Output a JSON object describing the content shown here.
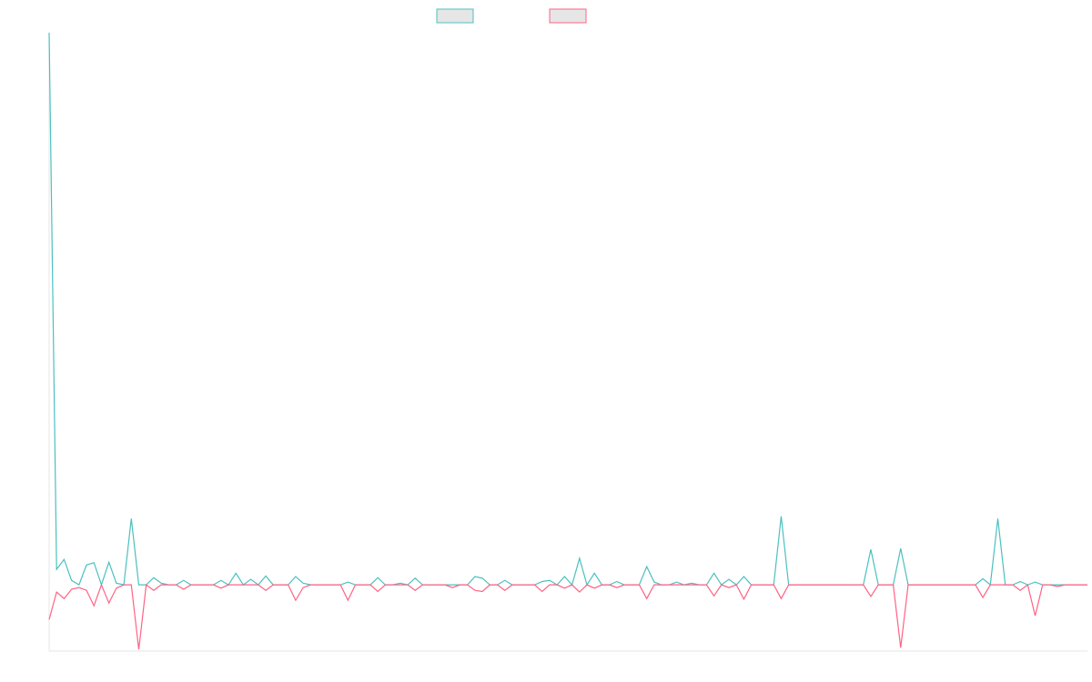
{
  "chart_data": {
    "type": "line",
    "ylim": [
      -12,
      100
    ],
    "series": [
      {
        "color": "#4bc0c0",
        "values": [
          100,
          2.8,
          4.6,
          0.8,
          0,
          3.6,
          4,
          0,
          4.1,
          0.3,
          0,
          12,
          0,
          0,
          1.3,
          0.3,
          0,
          0,
          0.8,
          0,
          0,
          0,
          0,
          0.8,
          0,
          2.1,
          0,
          1,
          0,
          1.6,
          0,
          0,
          0,
          1.5,
          0.3,
          0,
          0,
          0,
          0,
          0,
          0.5,
          0,
          0,
          0,
          1.3,
          0,
          0,
          0.3,
          0,
          1.2,
          0,
          0,
          0,
          0,
          0,
          0,
          0,
          1.5,
          1.2,
          0,
          0,
          0.8,
          0,
          0,
          0,
          0,
          0.6,
          0.8,
          0,
          1.5,
          0,
          4.8,
          0,
          2.1,
          0,
          0,
          0.6,
          0,
          0,
          0,
          3.3,
          0.5,
          0,
          0,
          0.5,
          0,
          0.3,
          0,
          0,
          2.1,
          0,
          1,
          0,
          1.5,
          0,
          0,
          0,
          0,
          12.4,
          0,
          0,
          0,
          0,
          0,
          0,
          0,
          0,
          0,
          0,
          0,
          6.4,
          0,
          0,
          0,
          6.6,
          0,
          0,
          0,
          0,
          0,
          0,
          0,
          0,
          0,
          0,
          1.1,
          0,
          12,
          0,
          0,
          0.6,
          0,
          0.5,
          0,
          0,
          0,
          0,
          0,
          0,
          0
        ]
      },
      {
        "color": "#ff6384",
        "values": [
          -6.3,
          -1.3,
          -2.5,
          -0.8,
          -0.5,
          -1,
          -3.8,
          0,
          -3.3,
          -0.6,
          0,
          0,
          -11.7,
          0,
          -1,
          0,
          0,
          0,
          -0.8,
          0,
          0,
          0,
          0,
          -0.6,
          0,
          0,
          0,
          0,
          0,
          -1,
          0,
          0,
          0,
          -2.8,
          -0.5,
          0,
          0,
          0,
          0,
          0,
          -2.8,
          0,
          0,
          0,
          -1.2,
          0,
          0,
          0,
          0,
          -1,
          0,
          0,
          0,
          0,
          -0.5,
          0,
          0,
          -1,
          -1.2,
          0,
          0,
          -1,
          0,
          0,
          0,
          0,
          -1.2,
          0,
          0,
          -0.6,
          0,
          -1.3,
          0,
          -0.6,
          0,
          0,
          -0.5,
          0,
          0,
          0,
          -2.5,
          0,
          0,
          0,
          0,
          0,
          0,
          0,
          0,
          -2,
          0,
          -0.5,
          0,
          -2.6,
          0,
          0,
          0,
          0,
          -2.5,
          0,
          0,
          0,
          0,
          0,
          0,
          0,
          0,
          0,
          0,
          0,
          -2.1,
          0,
          0,
          0,
          -11.4,
          0,
          0,
          0,
          0,
          0,
          0,
          0,
          0,
          0,
          0,
          -2.3,
          0,
          0,
          0,
          0,
          -1,
          0,
          -5.6,
          0,
          0,
          -0.3,
          0,
          0,
          0,
          0
        ]
      }
    ]
  }
}
